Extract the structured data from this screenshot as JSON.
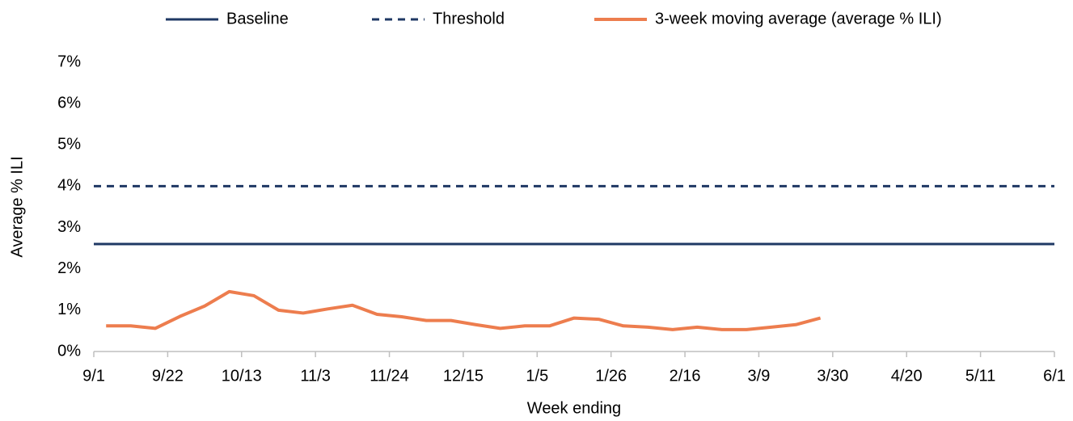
{
  "chart_data": {
    "type": "line",
    "x_label": "Week ending",
    "y_label": "Average % ILI",
    "xlim": [
      0,
      39
    ],
    "xticks": [
      {
        "value": 0,
        "label": "9/1"
      },
      {
        "value": 3,
        "label": "9/22"
      },
      {
        "value": 6,
        "label": "10/13"
      },
      {
        "value": 9,
        "label": "11/3"
      },
      {
        "value": 12,
        "label": "11/24"
      },
      {
        "value": 15,
        "label": "12/15"
      },
      {
        "value": 18,
        "label": "1/5"
      },
      {
        "value": 21,
        "label": "1/26"
      },
      {
        "value": 24,
        "label": "2/16"
      },
      {
        "value": 27,
        "label": "3/9"
      },
      {
        "value": 30,
        "label": "3/30"
      },
      {
        "value": 33,
        "label": "4/20"
      },
      {
        "value": 36,
        "label": "5/11"
      },
      {
        "value": 39,
        "label": "6/1"
      }
    ],
    "ylim": [
      0,
      7
    ],
    "yticks": [
      {
        "value": 0,
        "label": "0%"
      },
      {
        "value": 1,
        "label": "1%"
      },
      {
        "value": 2,
        "label": "2%"
      },
      {
        "value": 3,
        "label": "3%"
      },
      {
        "value": 4,
        "label": "4%"
      },
      {
        "value": 5,
        "label": "5%"
      },
      {
        "value": 6,
        "label": "6%"
      },
      {
        "value": 7,
        "label": "7%"
      }
    ],
    "grid": false,
    "series": [
      {
        "name": "Baseline",
        "color": "#1f3864",
        "dashed": false,
        "values": [
          2.6
        ]
      },
      {
        "name": "Threshold",
        "color": "#1f3864",
        "dashed": true,
        "values": [
          4.0
        ]
      },
      {
        "name": "3-week moving average (average % ILI)",
        "color": "#ed7d4e",
        "dashed": false,
        "x": [
          0.5,
          1.5,
          2.5,
          3.5,
          4.5,
          5.5,
          6.5,
          7.5,
          8.5,
          9.5,
          10.5,
          11.5,
          12.5,
          13.5,
          14.5,
          15.5,
          16.5,
          17.5,
          18.5,
          19.5,
          20.5,
          21.5,
          22.5,
          23.5,
          24.5,
          25.5,
          26.5,
          27.5,
          28.5,
          29.5
        ],
        "values": [
          0.62,
          0.62,
          0.56,
          0.85,
          1.1,
          1.45,
          1.35,
          1.0,
          0.93,
          1.03,
          1.12,
          0.9,
          0.84,
          0.75,
          0.75,
          0.65,
          0.56,
          0.62,
          0.62,
          0.81,
          0.78,
          0.62,
          0.59,
          0.53,
          0.59,
          0.53,
          0.53,
          0.59,
          0.65,
          0.81
        ]
      }
    ]
  }
}
